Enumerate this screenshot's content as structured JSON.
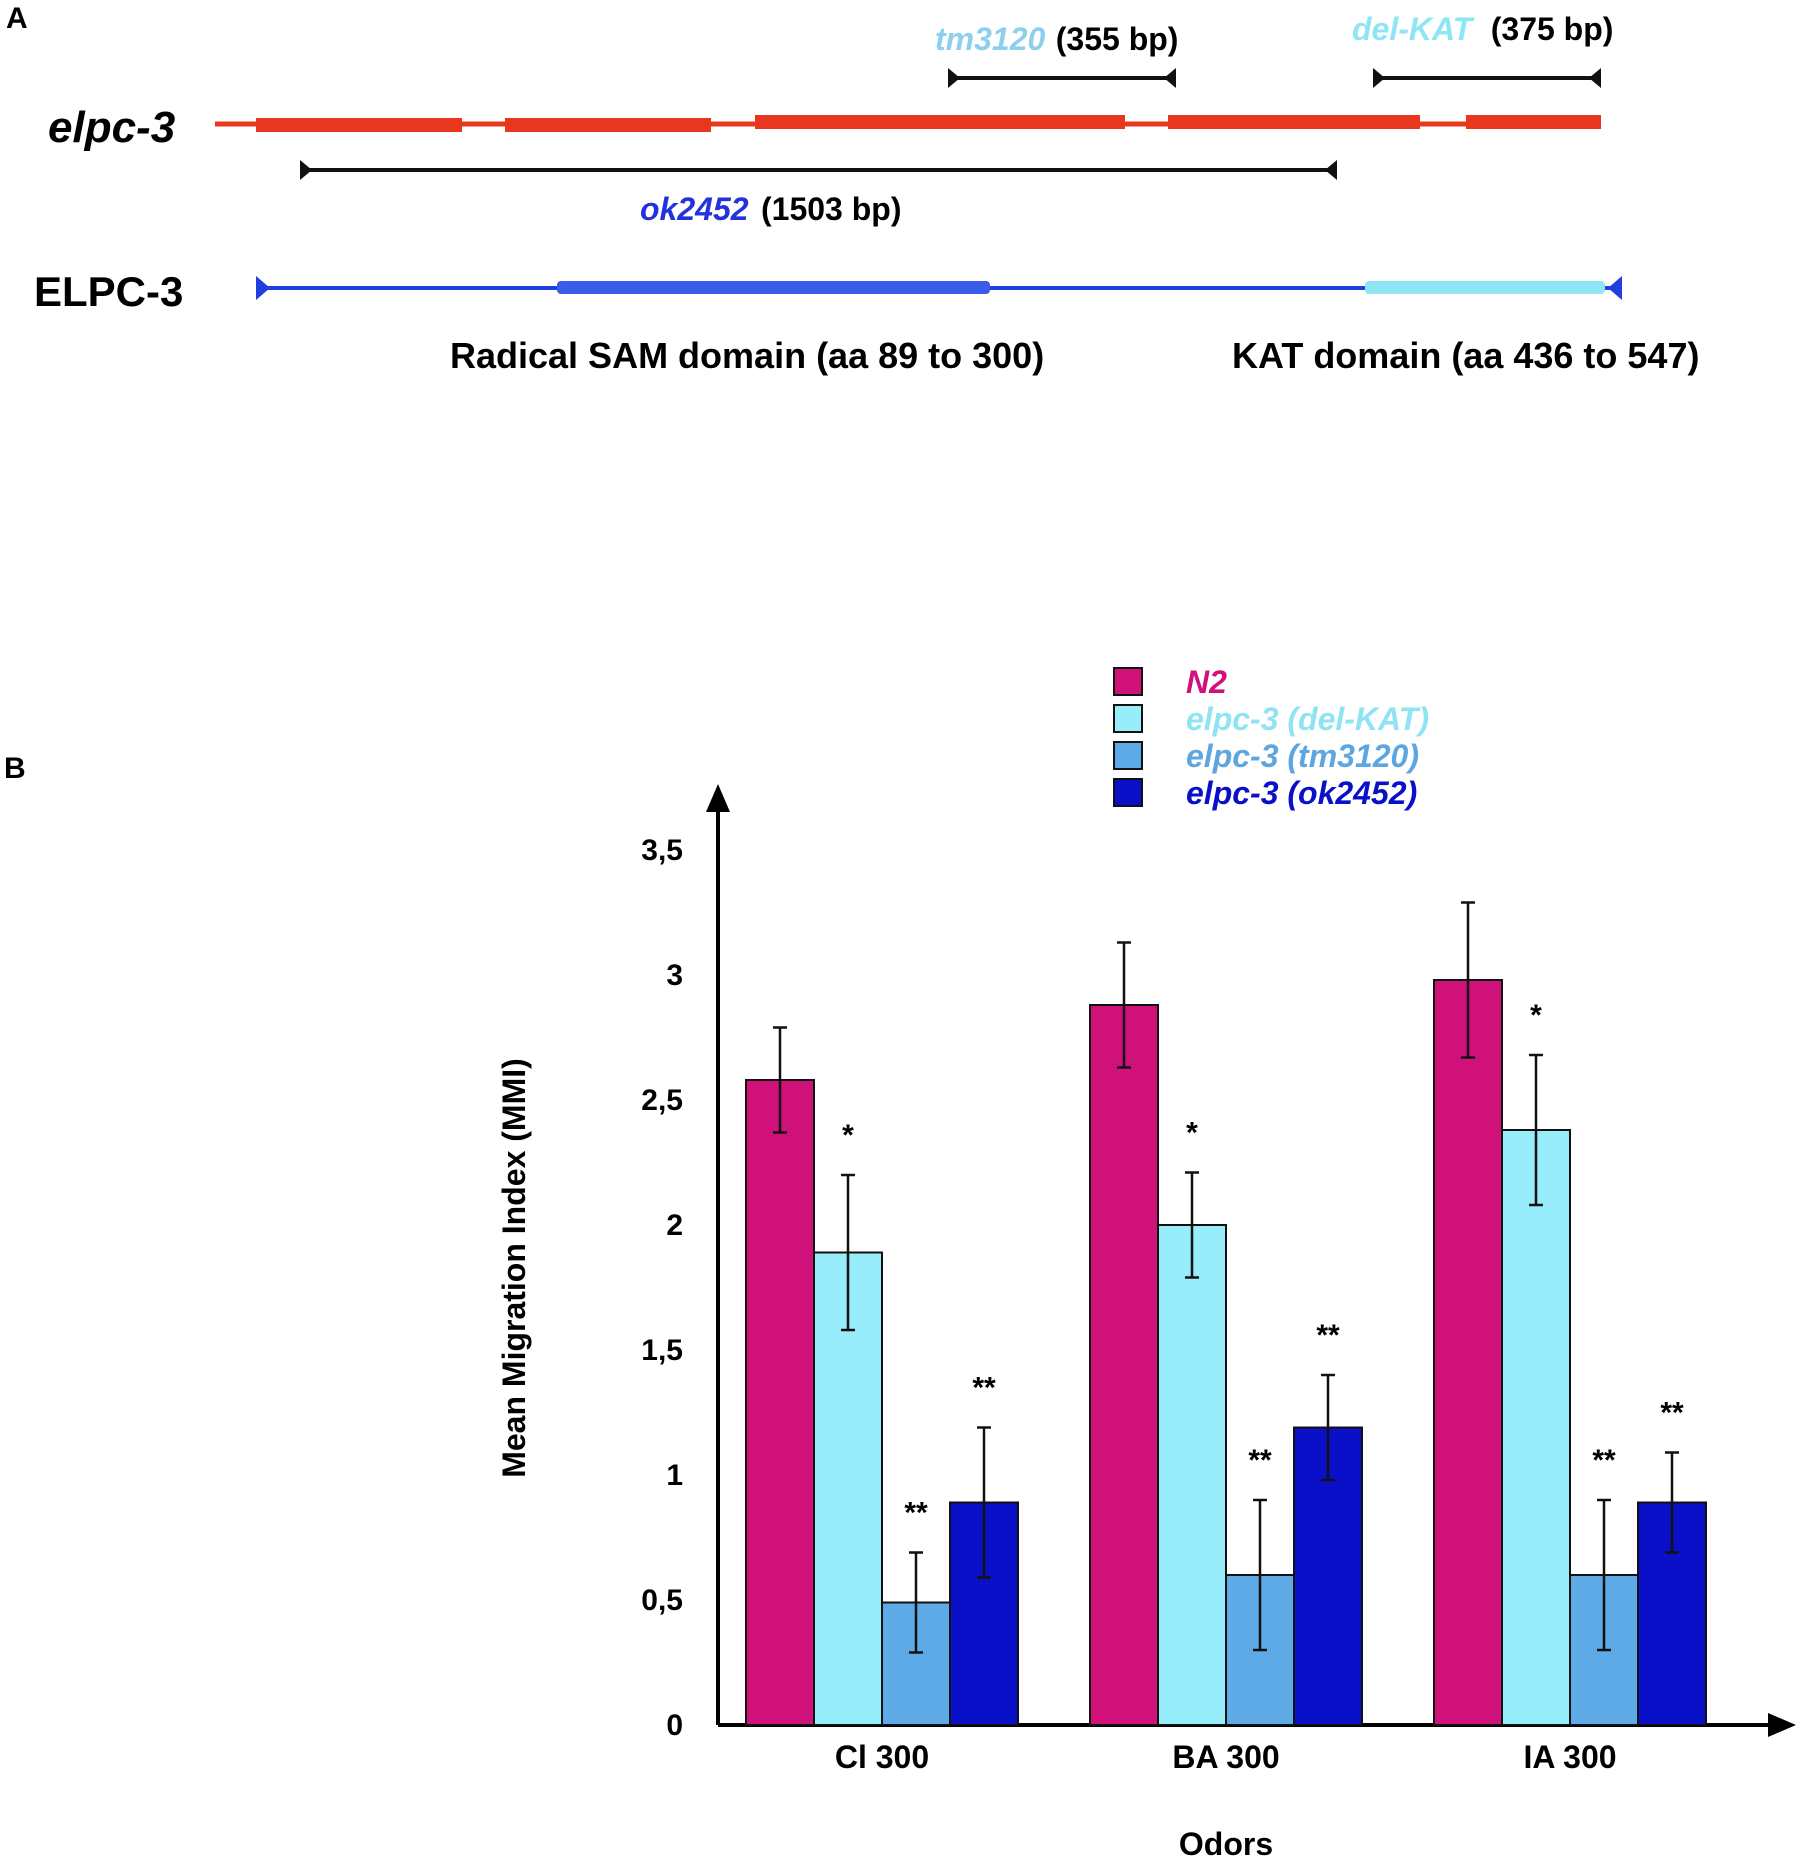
{
  "panelA": {
    "label": "A",
    "gene": {
      "label": "elpc-3",
      "color": "#e8371c"
    },
    "protein": {
      "label": "ELPC-3",
      "color": "#1f3fe0"
    },
    "deletions": [
      {
        "id": "tm3120",
        "name": "tm3120",
        "size": "(355 bp)",
        "name_color": "#8ecfee"
      },
      {
        "id": "delkat",
        "name": "del-KAT",
        "size": "(375 bp)",
        "name_color": "#8ee6f5"
      },
      {
        "id": "ok2452",
        "name": "ok2452",
        "size": "(1503 bp)",
        "name_color": "#2233dd"
      }
    ],
    "domains": [
      {
        "id": "sam",
        "label": "Radical SAM domain (aa 89 to 300)",
        "color": "#3a5ce8"
      },
      {
        "id": "kat",
        "label": "KAT domain (aa 436 to 547)",
        "color": "#8ee6f5"
      }
    ]
  },
  "panelB": {
    "label": "B"
  },
  "chart_data": {
    "type": "bar",
    "title": "",
    "xlabel": "Odors",
    "ylabel": "Mean Migration Index (MMI)",
    "ylim": [
      0,
      3.5
    ],
    "yticks": [
      "0",
      "0,5",
      "1",
      "1,5",
      "2",
      "2,5",
      "3",
      "3,5"
    ],
    "ytick_values": [
      0,
      0.5,
      1,
      1.5,
      2,
      2.5,
      3,
      3.5
    ],
    "categories": [
      "Cl 300",
      "BA 300",
      "IA 300"
    ],
    "series": [
      {
        "name": "N2",
        "color": "#d1117a",
        "legend_text_color": "#d1117a",
        "values": [
          2.58,
          2.88,
          2.98
        ],
        "errors": [
          0.21,
          0.25,
          0.31
        ],
        "sig": [
          "",
          "",
          ""
        ]
      },
      {
        "name": "elpc-3 (del-KAT)",
        "color": "#97edfa",
        "legend_text_color": "#8fe3f3",
        "values": [
          1.89,
          2.0,
          2.38
        ],
        "errors": [
          0.31,
          0.21,
          0.3
        ],
        "sig": [
          "*",
          "*",
          "*"
        ]
      },
      {
        "name": "elpc-3 (tm3120)",
        "color": "#5eaae6",
        "legend_text_color": "#5ea6e0",
        "values": [
          0.49,
          0.6,
          0.6
        ],
        "errors": [
          0.2,
          0.3,
          0.3
        ],
        "sig": [
          "**",
          "**",
          "**"
        ]
      },
      {
        "name": "elpc-3 (ok2452)",
        "color": "#0a10c8",
        "legend_text_color": "#0a10c8",
        "values": [
          0.89,
          1.19,
          0.89
        ],
        "errors": [
          0.3,
          0.21,
          0.2
        ],
        "sig": [
          "**",
          "**",
          "**"
        ]
      }
    ],
    "legend_position": "top"
  }
}
